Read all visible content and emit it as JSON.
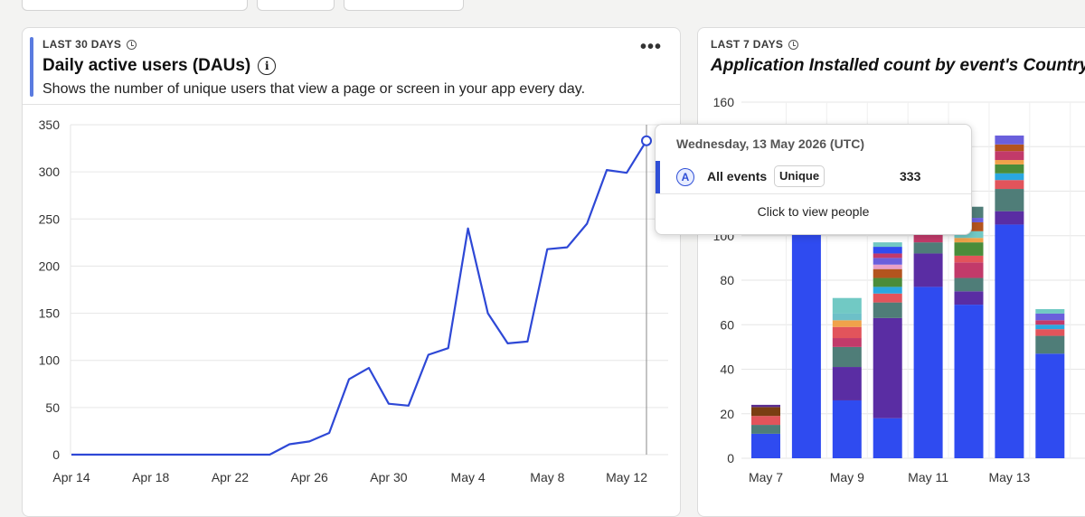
{
  "left_card": {
    "range_label": "LAST 30 DAYS",
    "title": "Daily active users (DAUs)",
    "description": "Shows the number of unique users that view a page or screen in your app every day.",
    "more_label": "•••"
  },
  "right_card": {
    "range_label": "LAST 7 DAYS",
    "title": "Application Installed count by event's Country name"
  },
  "tooltip": {
    "date": "Wednesday, 13 May 2026 (UTC)",
    "badge": "A",
    "event": "All events",
    "pill": "Unique",
    "value": "333",
    "link": "Click to view people"
  },
  "chart_data": [
    {
      "type": "line",
      "x": [
        "Apr 14",
        "Apr 15",
        "Apr 16",
        "Apr 17",
        "Apr 18",
        "Apr 19",
        "Apr 20",
        "Apr 21",
        "Apr 22",
        "Apr 23",
        "Apr 24",
        "Apr 25",
        "Apr 26",
        "Apr 27",
        "Apr 28",
        "Apr 29",
        "Apr 30",
        "May 1",
        "May 2",
        "May 3",
        "May 4",
        "May 5",
        "May 6",
        "May 7",
        "May 8",
        "May 9",
        "May 10",
        "May 11",
        "May 12",
        "May 13"
      ],
      "xticks": [
        "Apr 14",
        "Apr 18",
        "Apr 22",
        "Apr 26",
        "Apr 30",
        "May 4",
        "May 8",
        "May 12"
      ],
      "series": [
        {
          "values": [
            0,
            0,
            0,
            0,
            0,
            0,
            0,
            0,
            0,
            0,
            0,
            11,
            14,
            23,
            80,
            92,
            54,
            52,
            106,
            113,
            240,
            150,
            118,
            120,
            218,
            220,
            245,
            302,
            299,
            333
          ],
          "color": "#2e48d6"
        }
      ],
      "yticks": [
        0,
        50,
        100,
        150,
        200,
        250,
        300,
        350
      ],
      "ylim": [
        0,
        350
      ],
      "grid": true,
      "highlight_index": 29
    },
    {
      "type": "bar",
      "stacked": true,
      "categories": [
        "May 7",
        "May 8",
        "May 9",
        "May 10",
        "May 11",
        "May 12",
        "May 13",
        "May 14"
      ],
      "xticks": [
        "May 7",
        "May 9",
        "May 11",
        "May 13"
      ],
      "yticks": [
        0,
        20,
        40,
        60,
        80,
        100,
        120,
        140,
        160
      ],
      "ylim": [
        0,
        160
      ],
      "grid": true,
      "totals": [
        24,
        106,
        72,
        97,
        109,
        113,
        145,
        67
      ],
      "stacks": [
        [
          {
            "v": 11,
            "c": "#2f4bf0"
          },
          {
            "v": 4,
            "c": "#4f7d78"
          },
          {
            "v": 4,
            "c": "#e2545b"
          },
          {
            "v": 4,
            "c": "#7a3e12"
          },
          {
            "v": 1,
            "c": "#5a2d91"
          }
        ],
        [
          {
            "v": 106,
            "c": "#2f4bf0"
          }
        ],
        [
          {
            "v": 26,
            "c": "#2f4bf0"
          },
          {
            "v": 15,
            "c": "#5a2da3"
          },
          {
            "v": 9,
            "c": "#4f7d78"
          },
          {
            "v": 4,
            "c": "#c23a6a"
          },
          {
            "v": 5,
            "c": "#e2545b"
          },
          {
            "v": 3,
            "c": "#f0a24a"
          },
          {
            "v": 3,
            "c": "#6dc0c8"
          },
          {
            "v": 7,
            "c": "#71c9c4"
          }
        ],
        [
          {
            "v": 18,
            "c": "#2f4bf0"
          },
          {
            "v": 45,
            "c": "#5a2da3"
          },
          {
            "v": 7,
            "c": "#4f7d78"
          },
          {
            "v": 4,
            "c": "#e2545b"
          },
          {
            "v": 3,
            "c": "#2aa7e0"
          },
          {
            "v": 4,
            "c": "#4a8c3a"
          },
          {
            "v": 4,
            "c": "#b3541e"
          },
          {
            "v": 2,
            "c": "#e8a0c8"
          },
          {
            "v": 3,
            "c": "#6a5fdc"
          },
          {
            "v": 2,
            "c": "#c23a6a"
          },
          {
            "v": 3,
            "c": "#2f4bf0"
          },
          {
            "v": 2,
            "c": "#71c9c4"
          }
        ],
        [
          {
            "v": 77,
            "c": "#2f4bf0"
          },
          {
            "v": 15,
            "c": "#5a2da3"
          },
          {
            "v": 5,
            "c": "#4f7d78"
          },
          {
            "v": 12,
            "c": "#c23a6a"
          }
        ],
        [
          {
            "v": 69,
            "c": "#2f4bf0"
          },
          {
            "v": 6,
            "c": "#5a2da3"
          },
          {
            "v": 6,
            "c": "#4f7d78"
          },
          {
            "v": 7,
            "c": "#c23a6a"
          },
          {
            "v": 3,
            "c": "#e2545b"
          },
          {
            "v": 6,
            "c": "#4a8c3a"
          },
          {
            "v": 2,
            "c": "#f0a24a"
          },
          {
            "v": 3,
            "c": "#71c9c4"
          },
          {
            "v": 4,
            "c": "#b3541e"
          },
          {
            "v": 2,
            "c": "#6a5fdc"
          },
          {
            "v": 5,
            "c": "#4f7d78"
          }
        ],
        [
          {
            "v": 105,
            "c": "#2f4bf0"
          },
          {
            "v": 6,
            "c": "#5a2da3"
          },
          {
            "v": 10,
            "c": "#4f7d78"
          },
          {
            "v": 4,
            "c": "#e2545b"
          },
          {
            "v": 3,
            "c": "#2aa7e0"
          },
          {
            "v": 4,
            "c": "#4a8c3a"
          },
          {
            "v": 2,
            "c": "#f0a24a"
          },
          {
            "v": 4,
            "c": "#c23a6a"
          },
          {
            "v": 3,
            "c": "#b3541e"
          },
          {
            "v": 4,
            "c": "#6a5fdc"
          }
        ],
        [
          {
            "v": 47,
            "c": "#2f4bf0"
          },
          {
            "v": 8,
            "c": "#4f7d78"
          },
          {
            "v": 3,
            "c": "#e2545b"
          },
          {
            "v": 2,
            "c": "#2aa7e0"
          },
          {
            "v": 2,
            "c": "#c23a6a"
          },
          {
            "v": 3,
            "c": "#6a5fdc"
          },
          {
            "v": 2,
            "c": "#71c9c4"
          }
        ]
      ]
    }
  ]
}
